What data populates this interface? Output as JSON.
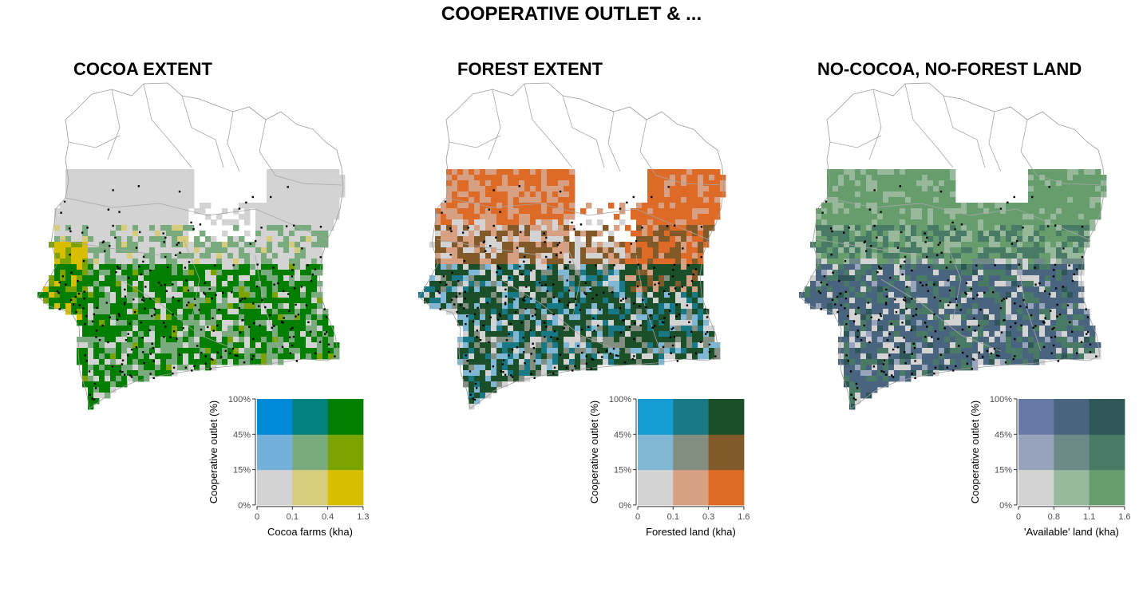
{
  "title": "COOPERATIVE OUTLET & ...",
  "panels": [
    {
      "title": "COCOA EXTENT",
      "legend": {
        "x_label": "Cocoa farms (kha)",
        "y_label": "Cooperative outlet (%)",
        "x_ticks": [
          "0",
          "0.1",
          "0.4",
          "1.3"
        ],
        "y_ticks": [
          "0%",
          "15%",
          "45%",
          "100%"
        ],
        "colors": [
          [
            "#d3d3d3",
            "#d7cb7c",
            "#d8be00"
          ],
          [
            "#73b1da",
            "#79ab7e",
            "#7aa300"
          ],
          [
            "#0288d8",
            "#02837f",
            "#027f00"
          ]
        ]
      }
    },
    {
      "title": "FOREST EXTENT",
      "legend": {
        "x_label": "Forested land (kha)",
        "y_label": "Cooperative outlet (%)",
        "x_ticks": [
          "0",
          "0.1",
          "0.3",
          "1.6"
        ],
        "y_ticks": [
          "0%",
          "15%",
          "45%",
          "100%"
        ],
        "colors": [
          [
            "#d3d3d3",
            "#d8a083",
            "#dd6a27"
          ],
          [
            "#7fb7d5",
            "#828e80",
            "#825a2a"
          ],
          [
            "#139dd4",
            "#197886",
            "#1a4f2a"
          ]
        ]
      }
    },
    {
      "title": "NO-COCOA, NO-FOREST LAND",
      "legend": {
        "x_label": "'Available' land (kha)",
        "y_label": "Cooperative outlet (%)",
        "x_ticks": [
          "0",
          "0.8",
          "1.1",
          "1.6"
        ],
        "y_ticks": [
          "0%",
          "15%",
          "45%",
          "100%"
        ],
        "colors": [
          [
            "#d3d3d3",
            "#98b89c",
            "#679d6d"
          ],
          [
            "#98a3bc",
            "#6d8a89",
            "#487a66"
          ],
          [
            "#6779a6",
            "#48647f",
            "#2f575a"
          ]
        ]
      }
    }
  ]
}
